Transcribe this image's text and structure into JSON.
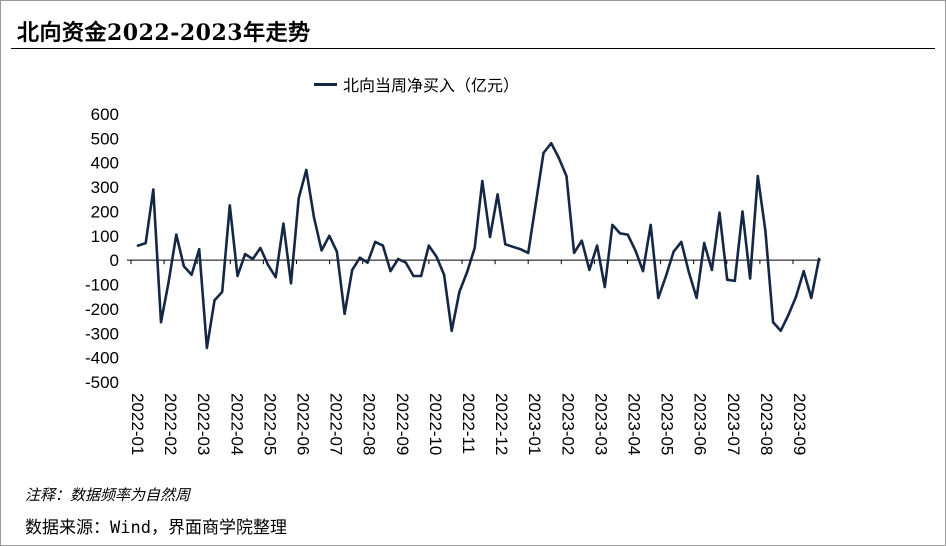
{
  "title": "北向资金2022-2023年走势",
  "note": "注释：数据频率为自然周",
  "source": "数据来源：Wind，界面商学院整理",
  "chart_data": {
    "type": "line",
    "title": "北向资金2022-2023年走势",
    "xlabel": "",
    "ylabel": "",
    "ylim": [
      -500,
      600
    ],
    "yticks": [
      600,
      500,
      400,
      300,
      200,
      100,
      0,
      -100,
      -200,
      -300,
      -400,
      -500
    ],
    "x_labels": [
      "2022-01",
      "2022-02",
      "2022-03",
      "2022-04",
      "2022-05",
      "2022-06",
      "2022-07",
      "2022-08",
      "2022-09",
      "2022-10",
      "2022-11",
      "2022-12",
      "2023-01",
      "2023-02",
      "2023-03",
      "2023-04",
      "2023-05",
      "2023-06",
      "2023-07",
      "2023-08",
      "2023-09"
    ],
    "series": [
      {
        "name": "北向当周净买入（亿元）",
        "color": "#142846",
        "values": [
          60,
          70,
          290,
          -255,
          -90,
          105,
          -25,
          -60,
          45,
          -360,
          -165,
          -130,
          225,
          -65,
          25,
          5,
          50,
          -20,
          -70,
          150,
          -95,
          255,
          370,
          175,
          40,
          100,
          35,
          -220,
          -40,
          10,
          -10,
          75,
          60,
          -45,
          5,
          -10,
          -65,
          -65,
          60,
          15,
          -60,
          -290,
          -130,
          -50,
          50,
          325,
          95,
          270,
          65,
          55,
          45,
          30,
          235,
          440,
          480,
          420,
          345,
          30,
          80,
          -40,
          60,
          -110,
          145,
          110,
          105,
          40,
          -45,
          145,
          -155,
          -65,
          35,
          75,
          -50,
          -155,
          70,
          -40,
          195,
          -80,
          -85,
          200,
          -75,
          345,
          120,
          -255,
          -290,
          -225,
          -150,
          -45,
          -155,
          5
        ]
      }
    ]
  }
}
